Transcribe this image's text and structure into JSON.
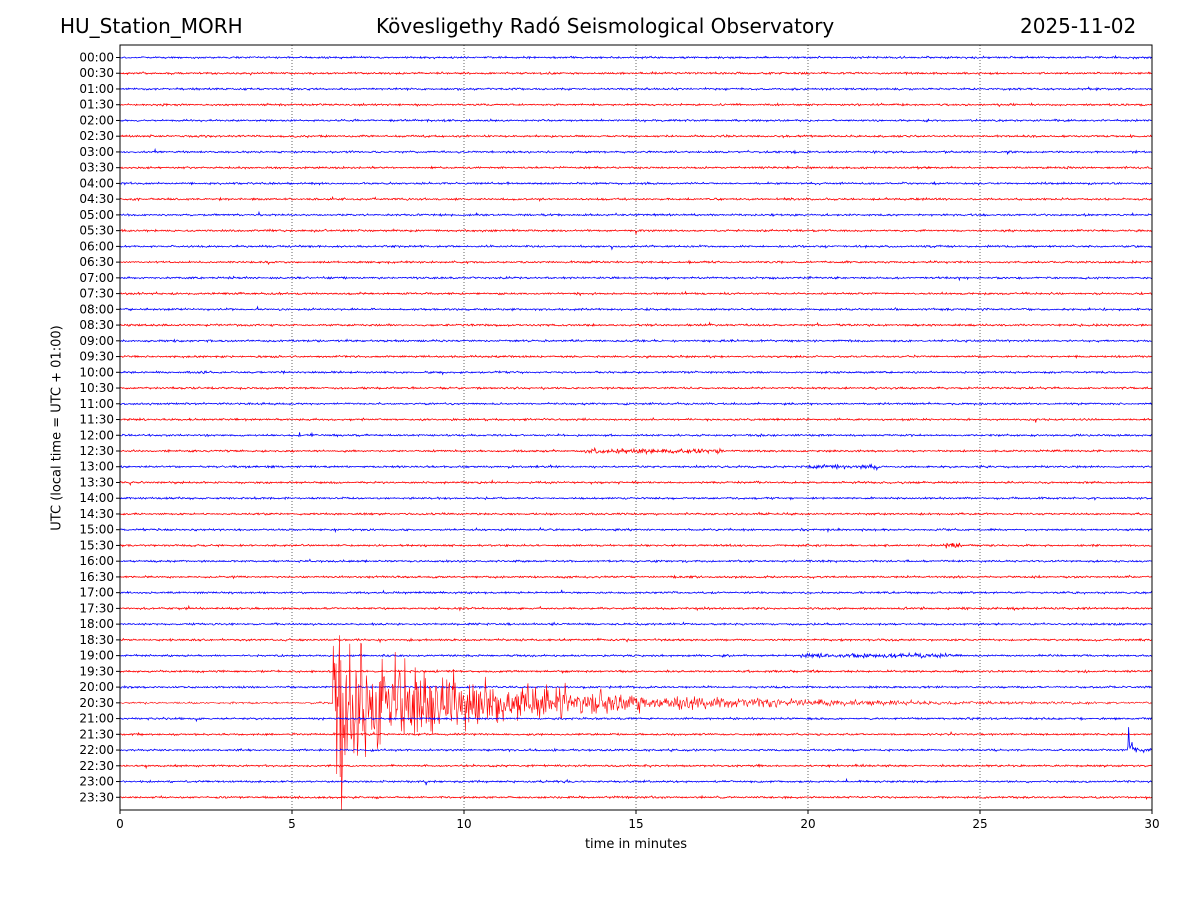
{
  "header": {
    "station": "HU_Station_MORH",
    "title": "Kövesligethy Radó Seismological Observatory",
    "date": "2025-11-02"
  },
  "chart_data": {
    "type": "line",
    "xlabel": "time in minutes",
    "ylabel": "UTC (local time = UTC + 01:00)",
    "xlim": [
      0,
      30
    ],
    "x_ticks": [
      0,
      5,
      10,
      15,
      20,
      25,
      30
    ],
    "grid": "vertical dotted lines at 5-minute intervals",
    "trace_colors": [
      "#0000ff",
      "#ff0000"
    ],
    "traces": [
      "00:00",
      "00:30",
      "01:00",
      "01:30",
      "02:00",
      "02:30",
      "03:00",
      "03:30",
      "04:00",
      "04:30",
      "05:00",
      "05:30",
      "06:00",
      "06:30",
      "07:00",
      "07:30",
      "08:00",
      "08:30",
      "09:00",
      "09:30",
      "10:00",
      "10:30",
      "11:00",
      "11:30",
      "12:00",
      "12:30",
      "13:00",
      "13:30",
      "14:00",
      "14:30",
      "15:00",
      "15:30",
      "16:00",
      "16:30",
      "17:00",
      "17:30",
      "18:00",
      "18:30",
      "19:00",
      "19:30",
      "20:00",
      "20:30",
      "21:00",
      "21:30",
      "22:00",
      "22:30",
      "23:00",
      "23:30"
    ],
    "events": [
      {
        "trace": "20:30",
        "onset_min": 6.2,
        "peak_min": 6.4,
        "coda_end_min": 30,
        "description": "large earthquake signal with long coda"
      },
      {
        "trace": "22:00",
        "onset_min": 29.3,
        "peak_min": 29.4,
        "description": "short spike"
      },
      {
        "trace": "12:30",
        "onset_min": 13.5,
        "coda_end_min": 17.5,
        "description": "small burst"
      },
      {
        "trace": "13:00",
        "onset_min": 19.8,
        "coda_end_min": 22.2,
        "description": "small burst"
      },
      {
        "trace": "19:00",
        "onset_min": 19.8,
        "coda_end_min": 24.5,
        "description": "small burst"
      },
      {
        "trace": "15:30",
        "onset_min": 23.8,
        "coda_end_min": 24.5,
        "description": "small burst"
      }
    ]
  }
}
